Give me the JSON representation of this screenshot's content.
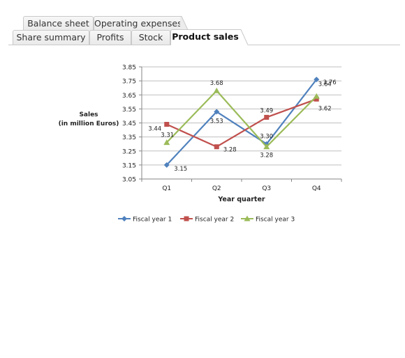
{
  "tabs_row1": [
    {
      "label": "Balance sheet"
    },
    {
      "label": "Operating expenses"
    }
  ],
  "tabs_row2": [
    {
      "label": "Share summary"
    },
    {
      "label": "Profits"
    },
    {
      "label": "Stock"
    },
    {
      "label": "Product sales",
      "active": true
    }
  ],
  "colors": {
    "fiscal_year_1": "#4f81bd",
    "fiscal_year_2": "#c0504d",
    "fiscal_year_3": "#9bbb59",
    "gridline": "#bfbfbf"
  },
  "chart_data": {
    "type": "line",
    "title": "",
    "xlabel": "Year quarter",
    "ylabel_line1": "Sales",
    "ylabel_line2": "(in million Euros)",
    "categories": [
      "Q1",
      "Q2",
      "Q3",
      "Q4"
    ],
    "ylim": [
      3.05,
      3.85
    ],
    "yticks": [
      "3.05",
      "3.15",
      "3.25",
      "3.35",
      "3.45",
      "3.55",
      "3.65",
      "3.75",
      "3.85"
    ],
    "grid": true,
    "legend_position": "bottom",
    "series": [
      {
        "name": "Fiscal year 1",
        "values": [
          3.15,
          3.53,
          3.3,
          3.76
        ],
        "labels": [
          "3.15",
          "3.53",
          "3.30",
          "3.76"
        ],
        "marker": "diamond"
      },
      {
        "name": "Fiscal year 2",
        "values": [
          3.44,
          3.28,
          3.49,
          3.62
        ],
        "labels": [
          "3.44",
          "3.28",
          "3.49",
          "3.62"
        ],
        "marker": "square"
      },
      {
        "name": "Fiscal year 3",
        "values": [
          3.31,
          3.68,
          3.28,
          3.64
        ],
        "labels": [
          "3.31",
          "3.68",
          "3.28",
          "3.64"
        ],
        "marker": "triangle"
      }
    ]
  }
}
